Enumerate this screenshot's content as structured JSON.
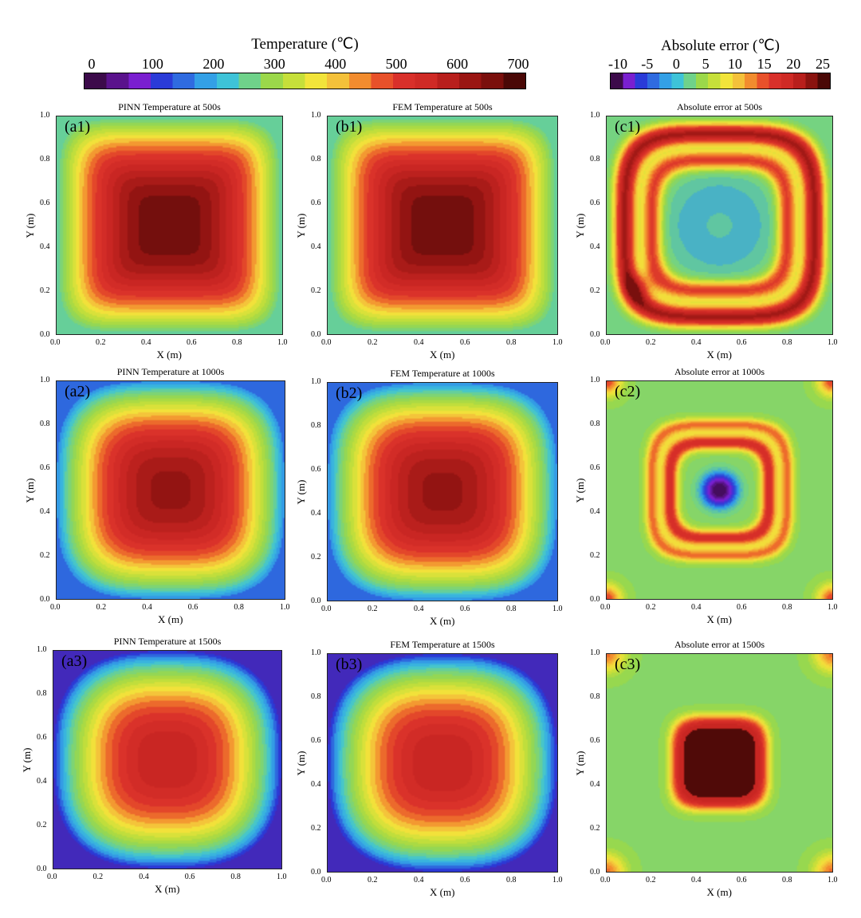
{
  "colorbars": {
    "temperature": {
      "title": "Temperature",
      "unit": "(℃)",
      "ticks": [
        "0",
        "100",
        "200",
        "300",
        "400",
        "500",
        "600",
        "700"
      ],
      "colors": [
        "#3c0a4a",
        "#5a128c",
        "#7a1fd0",
        "#2a3bd8",
        "#2f6be0",
        "#33a0e6",
        "#3ec3d8",
        "#6fd28a",
        "#9bd84a",
        "#c6df3a",
        "#f2e43a",
        "#f4c13a",
        "#f28c2e",
        "#e8512a",
        "#d9302a",
        "#cf2a25",
        "#b81f1c",
        "#9a1512",
        "#7a0f0c",
        "#4a0806"
      ]
    },
    "error": {
      "title": "Absolute error",
      "unit": "(℃)",
      "ticks": [
        "-10",
        "-5",
        "0",
        "5",
        "10",
        "15",
        "20",
        "25"
      ],
      "colors": [
        "#3c0a4a",
        "#7a1fd0",
        "#2a3bd8",
        "#2f6be0",
        "#33a0e6",
        "#3ec3d8",
        "#6fd28a",
        "#9bd84a",
        "#c6df3a",
        "#f2e43a",
        "#f4c13a",
        "#f28c2e",
        "#e8512a",
        "#d9302a",
        "#cf2a25",
        "#b81f1c",
        "#8a130f",
        "#4a0806"
      ]
    }
  },
  "chart_data": [
    {
      "id": "a1",
      "type": "heatmap",
      "title": "PINN Temperature at 500s",
      "letter": "(a1)",
      "xlabel": "X (m)",
      "ylabel": "Y (m)",
      "xlim": [
        0,
        1
      ],
      "ylim": [
        0,
        1
      ],
      "xticks": [
        "0.0",
        "0.2",
        "0.4",
        "0.6",
        "0.8",
        "1.0"
      ],
      "yticks": [
        "0.0",
        "0.2",
        "0.4",
        "0.6",
        "0.8",
        "1.0"
      ],
      "field": "temperature",
      "time_s": 500,
      "peak_temperature_c": 700,
      "edge_temperature_c": 250
    },
    {
      "id": "b1",
      "type": "heatmap",
      "title": "FEM Temperature at 500s",
      "letter": "(b1)",
      "xlabel": "X (m)",
      "ylabel": "Y (m)",
      "xlim": [
        0,
        1
      ],
      "ylim": [
        0,
        1
      ],
      "xticks": [
        "0.0",
        "0.2",
        "0.4",
        "0.6",
        "0.8",
        "1.0"
      ],
      "yticks": [
        "0.0",
        "0.2",
        "0.4",
        "0.6",
        "0.8",
        "1.0"
      ],
      "field": "temperature",
      "time_s": 500,
      "peak_temperature_c": 700,
      "edge_temperature_c": 250
    },
    {
      "id": "c1",
      "type": "heatmap",
      "title": "Absolute error at 500s",
      "letter": "(c1)",
      "xlabel": "X (m)",
      "ylabel": "Y (m)",
      "xlim": [
        0,
        1
      ],
      "ylim": [
        0,
        1
      ],
      "xticks": [
        "0.0",
        "0.2",
        "0.4",
        "0.6",
        "0.8",
        "1.0"
      ],
      "yticks": [
        "0.0",
        "0.2",
        "0.4",
        "0.6",
        "0.8",
        "1.0"
      ],
      "field": "error",
      "time_s": 500
    },
    {
      "id": "a2",
      "type": "heatmap",
      "title": "PINN Temperature at 1000s",
      "letter": "(a2)",
      "xlabel": "X (m)",
      "ylabel": "Y (m)",
      "xlim": [
        0,
        1
      ],
      "ylim": [
        0,
        1
      ],
      "xticks": [
        "0.0",
        "0.2",
        "0.4",
        "0.6",
        "0.8",
        "1.0"
      ],
      "yticks": [
        "0.0",
        "0.2",
        "0.4",
        "0.6",
        "0.8",
        "1.0"
      ],
      "field": "temperature",
      "time_s": 1000,
      "peak_temperature_c": 660,
      "edge_temperature_c": 170
    },
    {
      "id": "b2",
      "type": "heatmap",
      "title": "FEM Temperature at 1000s",
      "letter": "(b2)",
      "xlabel": "X (m)",
      "ylabel": "Y (m)",
      "xlim": [
        0,
        1
      ],
      "ylim": [
        0,
        1
      ],
      "xticks": [
        "0.0",
        "0.2",
        "0.4",
        "0.6",
        "0.8",
        "1.0"
      ],
      "yticks": [
        "0.0",
        "0.2",
        "0.4",
        "0.6",
        "0.8",
        "1.0"
      ],
      "field": "temperature",
      "time_s": 1000,
      "peak_temperature_c": 660,
      "edge_temperature_c": 170
    },
    {
      "id": "c2",
      "type": "heatmap",
      "title": "Absolute error at 1000s",
      "letter": "(c2)",
      "xlabel": "X (m)",
      "ylabel": "Y (m)",
      "xlim": [
        0,
        1
      ],
      "ylim": [
        0,
        1
      ],
      "xticks": [
        "0.0",
        "0.2",
        "0.4",
        "0.6",
        "0.8",
        "1.0"
      ],
      "yticks": [
        "0.0",
        "0.2",
        "0.4",
        "0.6",
        "0.8",
        "1.0"
      ],
      "field": "error",
      "time_s": 1000
    },
    {
      "id": "a3",
      "type": "heatmap",
      "title": "PINN Temperature at 1500s",
      "letter": "(a3)",
      "xlabel": "X (m)",
      "ylabel": "Y (m)",
      "xlim": [
        0,
        1
      ],
      "ylim": [
        0,
        1
      ],
      "xticks": [
        "0.0",
        "0.2",
        "0.4",
        "0.6",
        "0.8",
        "1.0"
      ],
      "yticks": [
        "0.0",
        "0.2",
        "0.4",
        "0.6",
        "0.8",
        "1.0"
      ],
      "field": "temperature",
      "time_s": 1500,
      "peak_temperature_c": 600,
      "edge_temperature_c": 120
    },
    {
      "id": "b3",
      "type": "heatmap",
      "title": "FEM Temperature at 1500s",
      "letter": "(b3)",
      "xlabel": "X (m)",
      "ylabel": "Y (m)",
      "xlim": [
        0,
        1
      ],
      "ylim": [
        0,
        1
      ],
      "xticks": [
        "0.0",
        "0.2",
        "0.4",
        "0.6",
        "0.8",
        "1.0"
      ],
      "yticks": [
        "0.0",
        "0.2",
        "0.4",
        "0.6",
        "0.8",
        "1.0"
      ],
      "field": "temperature",
      "time_s": 1500,
      "peak_temperature_c": 600,
      "edge_temperature_c": 120
    },
    {
      "id": "c3",
      "type": "heatmap",
      "title": "Absolute error at 1500s",
      "letter": "(c3)",
      "xlabel": "X (m)",
      "ylabel": "Y (m)",
      "xlim": [
        0,
        1
      ],
      "ylim": [
        0,
        1
      ],
      "xticks": [
        "0.0",
        "0.2",
        "0.4",
        "0.6",
        "0.8",
        "1.0"
      ],
      "yticks": [
        "0.0",
        "0.2",
        "0.4",
        "0.6",
        "0.8",
        "1.0"
      ],
      "field": "error",
      "time_s": 1500
    }
  ]
}
